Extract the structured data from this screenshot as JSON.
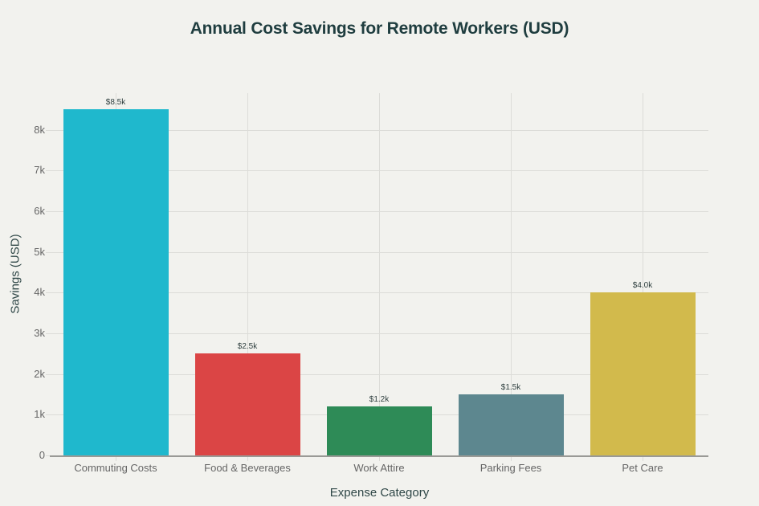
{
  "chart_data": {
    "type": "bar",
    "title": "Annual Cost Savings for Remote Workers (USD)",
    "xlabel": "Expense Category",
    "ylabel": "Savings (USD)",
    "categories": [
      "Commuting Costs",
      "Food & Beverages",
      "Work Attire",
      "Parking Fees",
      "Pet Care"
    ],
    "values": [
      8500,
      2500,
      1200,
      1500,
      4000
    ],
    "data_labels": [
      "$8.5k",
      "$2.5k",
      "$1.2k",
      "$1.5k",
      "$4.0k"
    ],
    "colors": [
      "#1fb8cd",
      "#db4545",
      "#2e8b57",
      "#5d878f",
      "#d2ba4c"
    ],
    "ylim": [
      0,
      8900
    ],
    "yticks": [
      0,
      1000,
      2000,
      3000,
      4000,
      5000,
      6000,
      7000,
      8000
    ],
    "ytick_labels": [
      "0",
      "1k",
      "2k",
      "3k",
      "4k",
      "5k",
      "6k",
      "7k",
      "8k"
    ],
    "grid": true,
    "legend": null
  }
}
